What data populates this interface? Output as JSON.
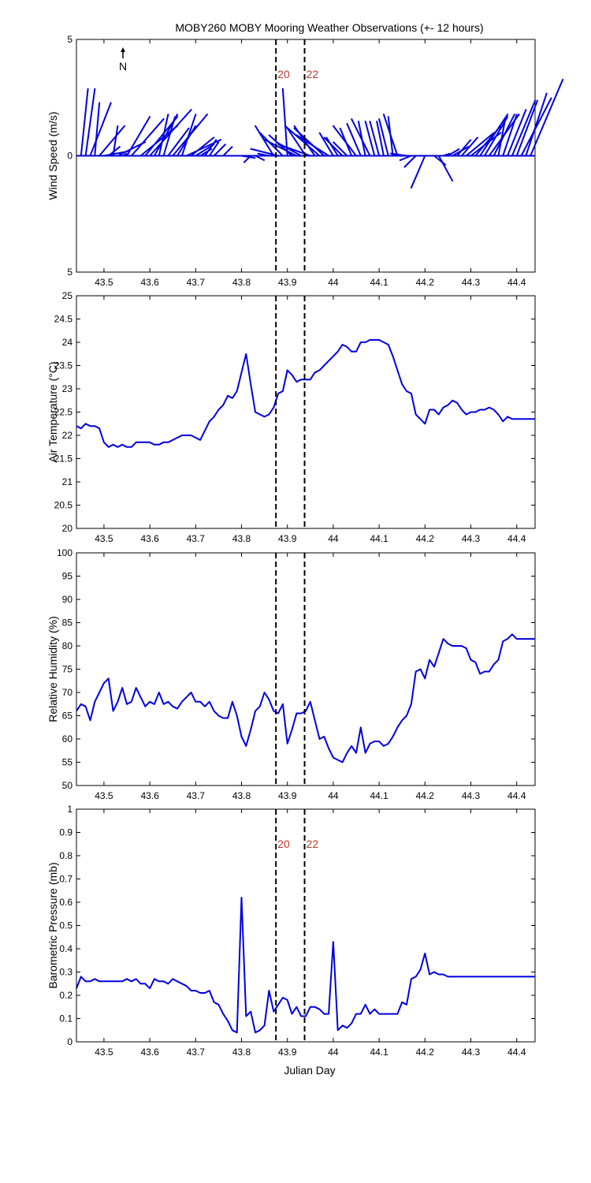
{
  "title": "MOBY260 MOBY Mooring Weather Observations (+- 12 hours)",
  "xlabel": "Julian Day",
  "north_label": "N",
  "colors": {
    "series": "#0000dd",
    "marker_label": "#c0392b",
    "axis": "#000000"
  },
  "markers": [
    {
      "x": 43.875,
      "label": "20"
    },
    {
      "x": 43.9375,
      "label": "22"
    }
  ],
  "chart_data": [
    {
      "type": "vector",
      "ylabel": "Wind Speed (m/s)",
      "xlim": [
        43.44,
        44.44
      ],
      "ylim": [
        -5,
        5
      ],
      "y_ticks": [
        -5,
        0,
        5
      ],
      "y_tick_labels": [
        "5",
        "0",
        "5"
      ],
      "x_ticks": [
        43.5,
        43.6,
        43.7,
        43.8,
        43.9,
        44,
        44.1,
        44.2,
        44.3,
        44.4
      ],
      "x_tick_labels": [
        "43.5",
        "43.6",
        "43.7",
        "43.8",
        "43.9",
        "44",
        "44.1",
        "44.2",
        "44.3",
        "44.4"
      ],
      "marker_labels_shown": true,
      "series": [
        {
          "x": [
            43.45,
            43.46,
            43.47,
            43.48,
            43.49,
            43.5,
            43.51,
            43.52,
            43.53,
            43.54,
            43.55,
            43.56,
            43.58,
            43.59,
            43.6,
            43.61,
            43.62,
            43.63,
            43.64,
            43.65,
            43.66,
            43.67,
            43.68,
            43.69,
            43.7,
            43.71,
            43.72,
            43.73,
            43.74,
            43.76,
            43.78,
            43.8,
            43.82,
            43.83,
            43.86,
            43.87,
            43.88,
            43.89,
            43.9,
            43.91,
            43.92,
            43.93,
            43.94,
            43.95,
            43.96,
            43.97,
            43.98,
            43.99,
            44.0,
            44.01,
            44.02,
            44.03,
            44.04,
            44.05,
            44.06,
            44.07,
            44.08,
            44.09,
            44.1,
            44.11,
            44.12,
            44.13,
            44.14,
            44.15,
            44.16,
            44.17,
            44.18,
            44.2,
            44.22,
            44.23,
            44.24,
            44.25,
            44.26,
            44.27,
            44.28,
            44.29,
            44.3,
            44.31,
            44.32,
            44.33,
            44.34,
            44.35,
            44.36,
            44.37,
            44.38,
            44.39,
            44.4,
            44.41,
            44.42,
            44.43
          ],
          "u": [
            0.3,
            0.4,
            0.9,
            0.2,
            1.1,
            1.1,
            0.5,
            0.2,
            1.2,
            0.2,
            1.0,
            1.4,
            1.6,
            1.4,
            1.8,
            1.0,
            0.4,
            0.5,
            0.9,
            1.5,
            0.8,
            0.6,
            1.5,
            1.0,
            0.8,
            0.5,
            0.5,
            0.4,
            0.5,
            0.4,
            0.6,
            0.6,
            -0.3,
            0.4,
            -0.5,
            -0.8,
            -1.2,
            -1.0,
            -0.2,
            -1.0,
            -1.4,
            -1.1,
            -0.8,
            -1.4,
            -0.9,
            -1.5,
            -1.3,
            -1.4,
            -0.6,
            -0.5,
            -0.8,
            -0.6,
            -0.5,
            -1.0,
            -0.6,
            -0.3,
            -0.8,
            -0.4,
            -0.4,
            -0.3,
            -0.4,
            -0.2,
            -0.6,
            -0.5,
            -0.7,
            -0.5,
            -0.5,
            -0.6,
            0.5,
            0.6,
            0.3,
            0.5,
            0.7,
            0.6,
            0.7,
            1.2,
            1.3,
            1.1,
            1.2,
            1.0,
            1.3,
            0.9,
            0.3,
            0.6,
            0.8,
            1.0,
            0.9,
            1.3,
            0.9,
            1.4
          ],
          "v": [
            2.9,
            2.9,
            2.3,
            2.3,
            1.3,
            0.2,
            0.4,
            1.3,
            0.6,
            0.1,
            1.7,
            1.6,
            1.3,
            1.7,
            2.0,
            1.8,
            1.8,
            1.7,
            1.2,
            1.8,
            1.3,
            1.8,
            0.7,
            0.8,
            0.5,
            0.3,
            0.7,
            0.6,
            0.5,
            0.4,
            0.0,
            -0.1,
            -0.3,
            -0.2,
            0.1,
            1.3,
            0.3,
            1.0,
            2.9,
            0.9,
            0.7,
            0.6,
            1.2,
            0.5,
            1.3,
            1.3,
            1.2,
            0.9,
            1.0,
            0.8,
            0.8,
            0.6,
            1.2,
            1.3,
            1.4,
            1.5,
            1.6,
            1.5,
            1.5,
            1.5,
            1.6,
            1.7,
            1.8,
            0.1,
            0.1,
            -0.2,
            -0.5,
            -1.4,
            -0.4,
            -1.1,
            0.1,
            0.3,
            0.4,
            0.7,
            0.8,
            1.0,
            1.0,
            1.3,
            1.8,
            1.7,
            1.8,
            1.8,
            1.6,
            1.8,
            2.0,
            2.4,
            2.4,
            2.5,
            2.7,
            3.3
          ]
        }
      ]
    },
    {
      "type": "line",
      "ylabel": "Air Temperature (°C)",
      "xlim": [
        43.44,
        44.44
      ],
      "ylim": [
        20,
        25
      ],
      "y_ticks": [
        20,
        20.5,
        21,
        21.5,
        22,
        22.5,
        23,
        23.5,
        24,
        24.5,
        25
      ],
      "y_tick_labels": [
        "20",
        "20.5",
        "21",
        "21.5",
        "22",
        "22.5",
        "23",
        "23.5",
        "24",
        "24.5",
        "25"
      ],
      "x_ticks": [
        43.5,
        43.6,
        43.7,
        43.8,
        43.9,
        44,
        44.1,
        44.2,
        44.3,
        44.4
      ],
      "x_tick_labels": [
        "43.5",
        "43.6",
        "43.7",
        "43.8",
        "43.9",
        "44",
        "44.1",
        "44.2",
        "44.3",
        "44.4"
      ],
      "series": [
        {
          "x": [
            43.44,
            43.45,
            43.46,
            43.47,
            43.48,
            43.49,
            43.5,
            43.51,
            43.52,
            43.53,
            43.54,
            43.55,
            43.56,
            43.57,
            43.58,
            43.59,
            43.6,
            43.61,
            43.62,
            43.63,
            43.64,
            43.65,
            43.66,
            43.67,
            43.68,
            43.69,
            43.7,
            43.71,
            43.72,
            43.73,
            43.74,
            43.75,
            43.76,
            43.77,
            43.78,
            43.79,
            43.8,
            43.81,
            43.82,
            43.83,
            43.84,
            43.85,
            43.86,
            43.87,
            43.88,
            43.89,
            43.9,
            43.91,
            43.92,
            43.93,
            43.94,
            43.95,
            43.96,
            43.97,
            43.98,
            43.99,
            44.0,
            44.01,
            44.02,
            44.03,
            44.04,
            44.05,
            44.06,
            44.07,
            44.08,
            44.09,
            44.1,
            44.11,
            44.12,
            44.13,
            44.14,
            44.15,
            44.16,
            44.17,
            44.18,
            44.19,
            44.2,
            44.21,
            44.22,
            44.23,
            44.24,
            44.25,
            44.26,
            44.27,
            44.28,
            44.29,
            44.3,
            44.31,
            44.32,
            44.33,
            44.34,
            44.35,
            44.36,
            44.37,
            44.38,
            44.39,
            44.4,
            44.41,
            44.42,
            44.43,
            44.44
          ],
          "y": [
            22.2,
            22.15,
            22.25,
            22.2,
            22.2,
            22.15,
            21.85,
            21.75,
            21.8,
            21.75,
            21.8,
            21.75,
            21.75,
            21.85,
            21.85,
            21.85,
            21.85,
            21.8,
            21.8,
            21.85,
            21.85,
            21.9,
            21.95,
            22.0,
            22.0,
            22.0,
            21.95,
            21.9,
            22.1,
            22.3,
            22.4,
            22.55,
            22.65,
            22.85,
            22.8,
            22.95,
            23.35,
            23.75,
            23.1,
            22.5,
            22.45,
            22.4,
            22.45,
            22.6,
            22.9,
            22.95,
            23.4,
            23.3,
            23.15,
            23.2,
            23.2,
            23.2,
            23.35,
            23.4,
            23.5,
            23.6,
            23.7,
            23.8,
            23.95,
            23.9,
            23.8,
            23.8,
            24.0,
            24.0,
            24.05,
            24.05,
            24.05,
            24.0,
            23.95,
            23.7,
            23.4,
            23.1,
            22.95,
            22.9,
            22.45,
            22.35,
            22.25,
            22.55,
            22.55,
            22.45,
            22.6,
            22.65,
            22.75,
            22.7,
            22.55,
            22.45,
            22.5,
            22.5,
            22.55,
            22.55,
            22.6,
            22.55,
            22.45,
            22.3,
            22.4,
            22.35,
            22.35,
            22.35,
            22.35,
            22.35,
            22.35
          ]
        }
      ]
    },
    {
      "type": "line",
      "ylabel": "Relative Humidity (%)",
      "xlim": [
        43.44,
        44.44
      ],
      "ylim": [
        50,
        100
      ],
      "y_ticks": [
        50,
        55,
        60,
        65,
        70,
        75,
        80,
        85,
        90,
        95,
        100
      ],
      "y_tick_labels": [
        "50",
        "55",
        "60",
        "65",
        "70",
        "75",
        "80",
        "85",
        "90",
        "95",
        "100"
      ],
      "x_ticks": [
        43.5,
        43.6,
        43.7,
        43.8,
        43.9,
        44,
        44.1,
        44.2,
        44.3,
        44.4
      ],
      "x_tick_labels": [
        "43.5",
        "43.6",
        "43.7",
        "43.8",
        "43.9",
        "44",
        "44.1",
        "44.2",
        "44.3",
        "44.4"
      ],
      "series": [
        {
          "x": [
            43.44,
            43.45,
            43.46,
            43.47,
            43.48,
            43.49,
            43.5,
            43.51,
            43.52,
            43.53,
            43.54,
            43.55,
            43.56,
            43.57,
            43.58,
            43.59,
            43.6,
            43.61,
            43.62,
            43.63,
            43.64,
            43.65,
            43.66,
            43.67,
            43.68,
            43.69,
            43.7,
            43.71,
            43.72,
            43.73,
            43.74,
            43.75,
            43.76,
            43.77,
            43.78,
            43.79,
            43.8,
            43.81,
            43.82,
            43.83,
            43.84,
            43.85,
            43.86,
            43.87,
            43.88,
            43.89,
            43.9,
            43.91,
            43.92,
            43.93,
            43.94,
            43.95,
            43.96,
            43.97,
            43.98,
            43.99,
            44.0,
            44.01,
            44.02,
            44.03,
            44.04,
            44.05,
            44.06,
            44.07,
            44.08,
            44.09,
            44.1,
            44.11,
            44.12,
            44.13,
            44.14,
            44.15,
            44.16,
            44.17,
            44.18,
            44.19,
            44.2,
            44.21,
            44.22,
            44.23,
            44.24,
            44.25,
            44.26,
            44.27,
            44.28,
            44.29,
            44.3,
            44.31,
            44.32,
            44.33,
            44.34,
            44.35,
            44.36,
            44.37,
            44.38,
            44.39,
            44.4,
            44.41,
            44.42,
            44.43,
            44.44
          ],
          "y": [
            66,
            67.5,
            67,
            64,
            68,
            70,
            72,
            73,
            66,
            68,
            71,
            67.5,
            68,
            71,
            69,
            67,
            68,
            67.5,
            70,
            67.5,
            68,
            67,
            66.5,
            68,
            69,
            70,
            68,
            68,
            67,
            68,
            66,
            65,
            64.5,
            64.5,
            68,
            65,
            60.5,
            58.5,
            62,
            66,
            67,
            70,
            68.5,
            66,
            65.5,
            67.5,
            59,
            62,
            65.5,
            65.5,
            66,
            68,
            64,
            60,
            60.5,
            58,
            56,
            55.5,
            55,
            57,
            58.5,
            57,
            62.5,
            57,
            59,
            59.5,
            59.5,
            58.5,
            59,
            60.5,
            62.5,
            64,
            65,
            67.5,
            74.5,
            75,
            73,
            77,
            75.5,
            78.5,
            81.5,
            80.5,
            80,
            80,
            80,
            79.5,
            77,
            76.5,
            74,
            74.5,
            74.5,
            76,
            77,
            81,
            81.5,
            82.5,
            81.5,
            81.5,
            81.5,
            81.5,
            81.5
          ]
        }
      ]
    },
    {
      "type": "line",
      "ylabel": "Barometric Pressure (mb)",
      "xlim": [
        43.44,
        44.44
      ],
      "ylim": [
        0,
        1
      ],
      "y_ticks": [
        0,
        0.1,
        0.2,
        0.3,
        0.4,
        0.5,
        0.6,
        0.7,
        0.8,
        0.9,
        1
      ],
      "y_tick_labels": [
        "0",
        "0.1",
        "0.2",
        "0.3",
        "0.4",
        "0.5",
        "0.6",
        "0.7",
        "0.8",
        "0.9",
        "1"
      ],
      "x_ticks": [
        43.5,
        43.6,
        43.7,
        43.8,
        43.9,
        44,
        44.1,
        44.2,
        44.3,
        44.4
      ],
      "x_tick_labels": [
        "43.5",
        "43.6",
        "43.7",
        "43.8",
        "43.9",
        "44",
        "44.1",
        "44.2",
        "44.3",
        "44.4"
      ],
      "marker_labels_shown": true,
      "series": [
        {
          "x": [
            43.44,
            43.45,
            43.46,
            43.47,
            43.48,
            43.49,
            43.5,
            43.51,
            43.52,
            43.53,
            43.54,
            43.55,
            43.56,
            43.57,
            43.58,
            43.59,
            43.6,
            43.61,
            43.62,
            43.63,
            43.64,
            43.65,
            43.66,
            43.67,
            43.68,
            43.69,
            43.7,
            43.71,
            43.72,
            43.73,
            43.74,
            43.75,
            43.76,
            43.77,
            43.78,
            43.79,
            43.8,
            43.81,
            43.82,
            43.83,
            43.84,
            43.85,
            43.86,
            43.87,
            43.88,
            43.89,
            43.9,
            43.91,
            43.92,
            43.93,
            43.94,
            43.95,
            43.96,
            43.97,
            43.98,
            43.99,
            44.0,
            44.01,
            44.02,
            44.03,
            44.04,
            44.05,
            44.06,
            44.07,
            44.08,
            44.09,
            44.1,
            44.11,
            44.12,
            44.13,
            44.14,
            44.15,
            44.16,
            44.17,
            44.18,
            44.19,
            44.2,
            44.21,
            44.22,
            44.23,
            44.24,
            44.25,
            44.26,
            44.44
          ],
          "y": [
            0.23,
            0.28,
            0.26,
            0.26,
            0.27,
            0.26,
            0.26,
            0.26,
            0.26,
            0.26,
            0.26,
            0.27,
            0.26,
            0.27,
            0.25,
            0.25,
            0.23,
            0.27,
            0.26,
            0.26,
            0.25,
            0.27,
            0.26,
            0.25,
            0.24,
            0.22,
            0.22,
            0.21,
            0.21,
            0.22,
            0.17,
            0.16,
            0.12,
            0.09,
            0.05,
            0.04,
            0.62,
            0.11,
            0.13,
            0.04,
            0.05,
            0.07,
            0.22,
            0.13,
            0.16,
            0.19,
            0.18,
            0.12,
            0.15,
            0.11,
            0.11,
            0.15,
            0.15,
            0.14,
            0.12,
            0.12,
            0.43,
            0.05,
            0.07,
            0.06,
            0.08,
            0.12,
            0.12,
            0.16,
            0.12,
            0.14,
            0.12,
            0.12,
            0.12,
            0.12,
            0.12,
            0.17,
            0.16,
            0.27,
            0.28,
            0.31,
            0.38,
            0.29,
            0.3,
            0.29,
            0.29,
            0.28,
            0.28,
            0.28
          ]
        }
      ]
    }
  ]
}
